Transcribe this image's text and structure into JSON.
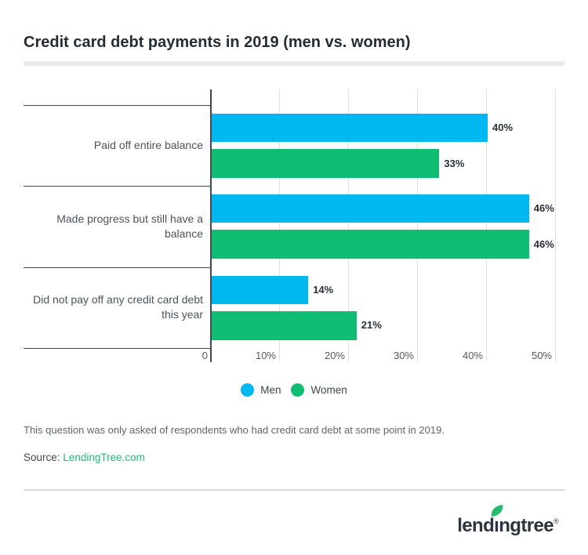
{
  "chart_data": {
    "type": "bar",
    "orientation": "horizontal",
    "title": "Credit card debt payments in 2019 (men vs. women)",
    "categories": [
      "Paid off entire balance",
      "Made progress but still have a balance",
      "Did not pay off any credit card debt this year"
    ],
    "series": [
      {
        "name": "Men",
        "color": "#00b8f0",
        "values": [
          40,
          46,
          14
        ]
      },
      {
        "name": "Women",
        "color": "#0fbe73",
        "values": [
          33,
          46,
          21
        ]
      }
    ],
    "value_suffix": "%",
    "x_ticks": [
      "0",
      "10%",
      "20%",
      "30%",
      "40%",
      "50%"
    ],
    "xlim": [
      0,
      50
    ],
    "grid": "vertical gridlines on",
    "legend_position": "bottom-center"
  },
  "footnote": "This question was only asked of respondents who had credit card debt at some point in 2019.",
  "source": {
    "label": "Source:",
    "link": "LendingTree.com"
  },
  "logo": {
    "text": "lendingtree",
    "part1": "lend",
    "dotless_i": "ı",
    "part2": "ngtree",
    "registered": "®"
  },
  "colors": {
    "men_blue": "#00b8f0",
    "women_green": "#0fbe73",
    "link_green": "#1cbe77",
    "leaf_green": "#29b96f",
    "logo_navy": "#2b3440",
    "title_navy": "#242d36"
  }
}
